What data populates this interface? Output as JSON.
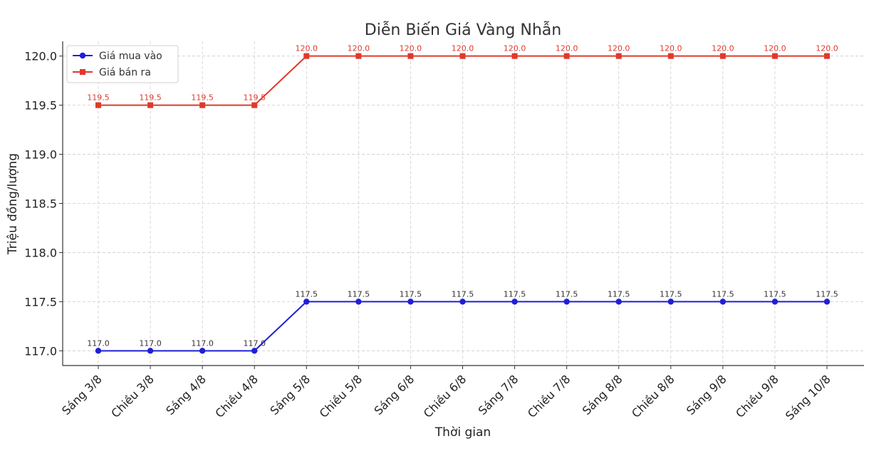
{
  "chart_data": {
    "type": "line",
    "title": "Diễn Biến Giá Vàng Nhẫn",
    "xlabel": "Thời gian",
    "ylabel": "Triệu đồng/lượng",
    "categories": [
      "Sáng 3/8",
      "Chiều 3/8",
      "Sáng 4/8",
      "Chiều 4/8",
      "Sáng 5/8",
      "Chiều 5/8",
      "Sáng 6/8",
      "Chiều 6/8",
      "Sáng 7/8",
      "Chiều 7/8",
      "Sáng 8/8",
      "Chiều 8/8",
      "Sáng 9/8",
      "Chiều 9/8",
      "Sáng 10/8"
    ],
    "ylim": [
      116.85,
      120.15
    ],
    "yticks": [
      117.0,
      117.5,
      118.0,
      118.5,
      119.0,
      119.5,
      120.0
    ],
    "ytick_labels": [
      "117.0",
      "117.5",
      "118.0",
      "118.5",
      "119.0",
      "119.5",
      "120.0"
    ],
    "grid": true,
    "legend_position": "top-left",
    "series": [
      {
        "name": "Giá mua vào",
        "color": "#1f1fd6",
        "marker": "circle",
        "values": [
          117.0,
          117.0,
          117.0,
          117.0,
          117.5,
          117.5,
          117.5,
          117.5,
          117.5,
          117.5,
          117.5,
          117.5,
          117.5,
          117.5,
          117.5
        ],
        "labels": [
          "117.0",
          "117.0",
          "117.0",
          "117.0",
          "117.5",
          "117.5",
          "117.5",
          "117.5",
          "117.5",
          "117.5",
          "117.5",
          "117.5",
          "117.5",
          "117.5",
          "117.5"
        ],
        "label_color": "#333333"
      },
      {
        "name": "Giá bán ra",
        "color": "#e0392b",
        "marker": "square",
        "values": [
          119.5,
          119.5,
          119.5,
          119.5,
          120.0,
          120.0,
          120.0,
          120.0,
          120.0,
          120.0,
          120.0,
          120.0,
          120.0,
          120.0,
          120.0
        ],
        "labels": [
          "119.5",
          "119.5",
          "119.5",
          "119.5",
          "120.0",
          "120.0",
          "120.0",
          "120.0",
          "120.0",
          "120.0",
          "120.0",
          "120.0",
          "120.0",
          "120.0",
          "120.0"
        ],
        "label_color": "#e0392b"
      }
    ]
  }
}
